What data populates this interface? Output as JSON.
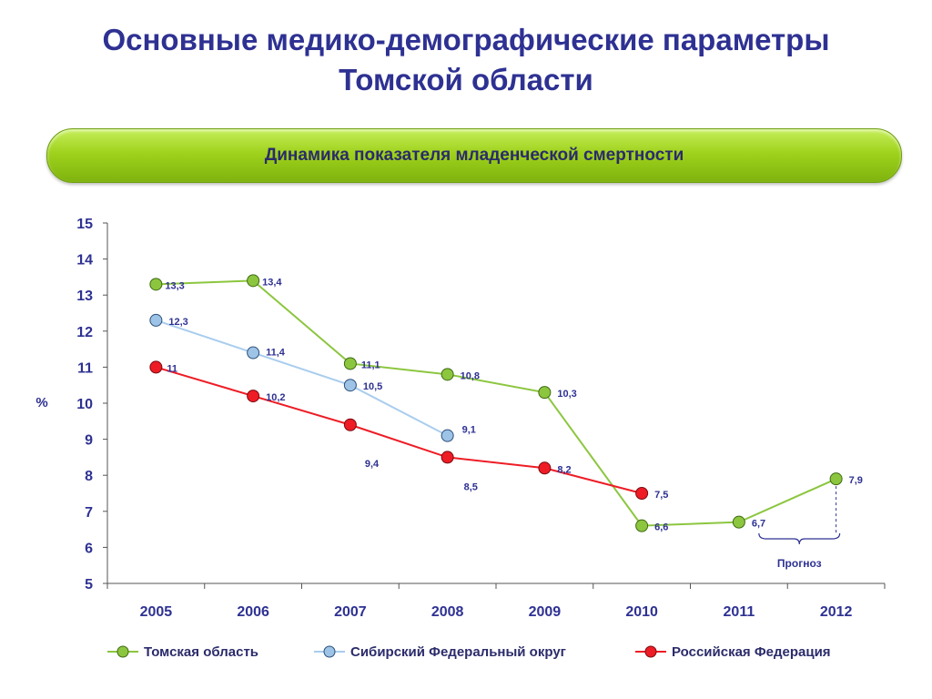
{
  "page": {
    "title_line1": "Основные медико-демографические параметры",
    "title_line2": "Томской области",
    "banner": "Динамика показателя младенческой смертности"
  },
  "chart_data": {
    "type": "line",
    "title": "Динамика показателя младенческой смертности",
    "xlabel": "",
    "ylabel": "%",
    "ylim": [
      5,
      15
    ],
    "yticks": [
      "5",
      "6",
      "7",
      "8",
      "9",
      "10",
      "11",
      "12",
      "13",
      "14",
      "15"
    ],
    "categories": [
      "2005",
      "2006",
      "2007",
      "2008",
      "2009",
      "2010",
      "2011",
      "2012"
    ],
    "series": [
      {
        "name": "Томская область",
        "color": "#8cc63f",
        "line_color": "#8cc63f",
        "values": [
          13.3,
          13.4,
          11.1,
          10.8,
          10.3,
          6.6,
          6.7,
          7.9
        ],
        "labels": [
          "13,3",
          "13,4",
          "11,1",
          "10,8",
          "10,3",
          "6,6",
          "6,7",
          "7,9"
        ]
      },
      {
        "name": "Сибирский Федеральный округ",
        "color": "#9dc3e6",
        "line_color": "#a9cdee",
        "values": [
          12.3,
          11.4,
          10.5,
          9.1,
          null,
          null,
          null,
          null
        ],
        "labels": [
          "12,3",
          "11,4",
          "10,5",
          "9,1",
          "",
          "",
          "",
          ""
        ]
      },
      {
        "name": "Российская Федерация",
        "color": "#ee1c25",
        "line_color": "#ee1c25",
        "values": [
          11,
          10.2,
          9.4,
          8.5,
          8.2,
          7.5,
          null,
          null
        ],
        "labels": [
          "11",
          "10,2",
          "9,4",
          "8,5",
          "8,2",
          "7,5",
          "",
          ""
        ]
      }
    ],
    "forecast_note": "Прогноз",
    "grid": false,
    "legend_position": "bottom"
  }
}
